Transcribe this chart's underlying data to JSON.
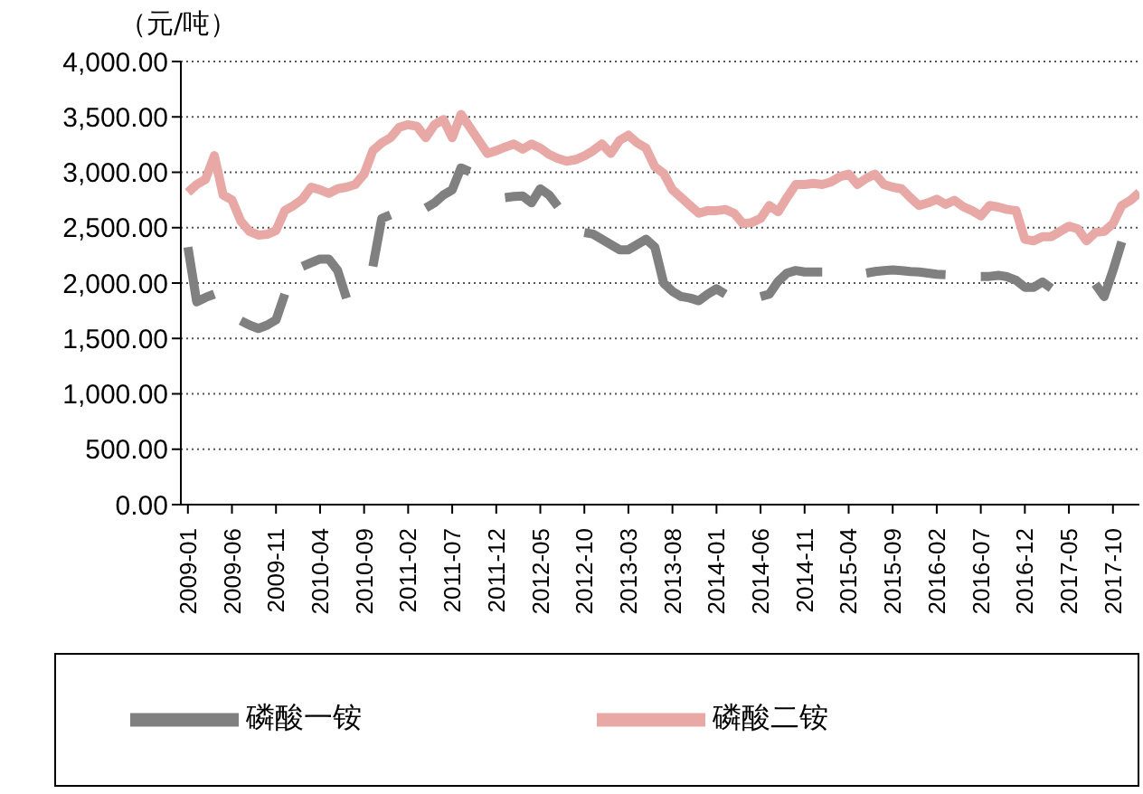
{
  "chart_data": {
    "type": "line",
    "ylabel": "（元/吨）",
    "categories": [
      "2009-01",
      null,
      null,
      null,
      null,
      "2009-06",
      null,
      null,
      null,
      null,
      "2009-11",
      null,
      null,
      null,
      null,
      "2010-04",
      null,
      null,
      null,
      null,
      "2010-09",
      null,
      null,
      null,
      null,
      "2011-02",
      null,
      null,
      null,
      null,
      "2011-07",
      null,
      null,
      null,
      null,
      "2011-12",
      null,
      null,
      null,
      null,
      "2012-05",
      null,
      null,
      null,
      null,
      "2012-10",
      null,
      null,
      null,
      null,
      "2013-03",
      null,
      null,
      null,
      null,
      "2013-08",
      null,
      null,
      null,
      null,
      "2014-01",
      null,
      null,
      null,
      null,
      "2014-06",
      null,
      null,
      null,
      null,
      "2014-11",
      null,
      null,
      null,
      null,
      "2015-04",
      null,
      null,
      null,
      null,
      "2015-09",
      null,
      null,
      null,
      null,
      "2016-02",
      null,
      null,
      null,
      null,
      "2016-07",
      null,
      null,
      null,
      null,
      "2016-12",
      null,
      null,
      null,
      null,
      "2017-05",
      null,
      null,
      null,
      null,
      "2017-10",
      null,
      null,
      null
    ],
    "series": [
      {
        "name": "磷酸一铵",
        "color": "#808080",
        "values": [
          2325,
          1830,
          1870,
          1900,
          null,
          null,
          1660,
          1620,
          1590,
          1620,
          1667,
          1900,
          null,
          2150,
          2184,
          2217,
          2217,
          2113,
          1864,
          null,
          null,
          2150,
          2583,
          2616,
          null,
          null,
          null,
          2677,
          2724,
          2795,
          2842,
          3039,
          3006,
          null,
          null,
          null,
          2772,
          2781,
          2786,
          2724,
          2851,
          2795,
          2692,
          null,
          null,
          2456,
          2442,
          2395,
          2348,
          2301,
          2301,
          2348,
          2395,
          2325,
          2000,
          1925,
          1878,
          1864,
          1840,
          1900,
          1948,
          1900,
          null,
          null,
          null,
          1878,
          1900,
          2016,
          2090,
          2113,
          2100,
          2100,
          2100,
          null,
          null,
          null,
          null,
          2090,
          2104,
          2113,
          2118,
          2113,
          2104,
          2100,
          2090,
          2080,
          2076,
          null,
          null,
          null,
          2060,
          2060,
          2070,
          2057,
          2025,
          1962,
          1962,
          2010,
          1953,
          null,
          null,
          null,
          null,
          1990,
          1878,
          2113,
          2372,
          null,
          null
        ]
      },
      {
        "name": "磷酸二铵",
        "color": "#e8a9a6",
        "values": [
          2818,
          2890,
          2936,
          3150,
          2795,
          2750,
          2560,
          2466,
          2433,
          2440,
          2475,
          2654,
          2700,
          2757,
          2865,
          2842,
          2810,
          2851,
          2865,
          2890,
          2983,
          3195,
          3265,
          3312,
          3406,
          3430,
          3415,
          3312,
          3430,
          3476,
          3312,
          3523,
          3406,
          3288,
          3170,
          3195,
          3227,
          3255,
          3209,
          3255,
          3218,
          3161,
          3124,
          3100,
          3114,
          3147,
          3195,
          3255,
          3170,
          3288,
          3335,
          3265,
          3218,
          3050,
          2990,
          2842,
          2772,
          2700,
          2630,
          2654,
          2654,
          2664,
          2630,
          2536,
          2546,
          2583,
          2700,
          2644,
          2772,
          2890,
          2890,
          2900,
          2890,
          2912,
          2960,
          2983,
          2890,
          2945,
          2983,
          2890,
          2865,
          2851,
          2772,
          2700,
          2724,
          2757,
          2710,
          2747,
          2690,
          2654,
          2607,
          2700,
          2686,
          2664,
          2654,
          2395,
          2381,
          2419,
          2419,
          2466,
          2513,
          2490,
          2381,
          2456,
          2466,
          2536,
          2700,
          2747,
          2818
        ]
      }
    ],
    "ylim": [
      0,
      4000
    ],
    "yticks": [
      {
        "value": 0,
        "label": "0.00"
      },
      {
        "value": 500,
        "label": "500.00"
      },
      {
        "value": 1000,
        "label": "1,000.00"
      },
      {
        "value": 1500,
        "label": "1,500.00"
      },
      {
        "value": 2000,
        "label": "2,000.00"
      },
      {
        "value": 2500,
        "label": "2,500.00"
      },
      {
        "value": 3000,
        "label": "3,000.00"
      },
      {
        "value": 3500,
        "label": "3,500.00"
      },
      {
        "value": 4000,
        "label": "4,000.00"
      }
    ],
    "grid": "y",
    "legend": "bottom",
    "marker": "none",
    "line_style": "solid"
  }
}
